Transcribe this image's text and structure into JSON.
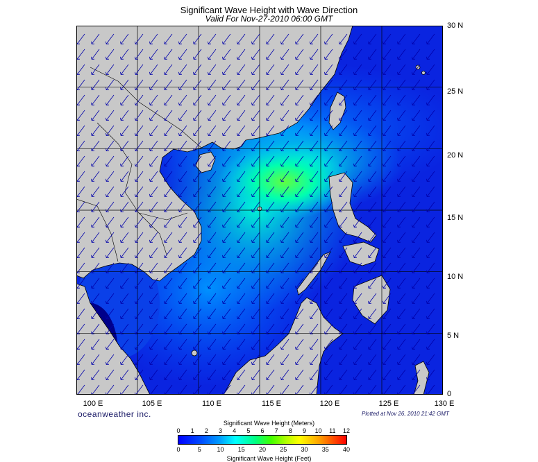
{
  "header": {
    "title": "Significant Wave Height with Wave Direction",
    "subtitle": "Valid For Nov-27-2010 06:00 GMT"
  },
  "map": {
    "region": "South China Sea",
    "lon_range": [
      100,
      130
    ],
    "lat_range": [
      0,
      30
    ],
    "lat_labels": [
      "30 N",
      "25 N",
      "20 N",
      "15 N",
      "10 N",
      "5 N",
      "0"
    ],
    "lon_labels": [
      "100 E",
      "105 E",
      "110 E",
      "115 E",
      "120 E",
      "125 E",
      "130 E"
    ],
    "land_color": "#c8c8c8",
    "ocean_color": "#0a24e0",
    "arrow_color": "#0000aa",
    "wave_direction": "from northeast"
  },
  "footer": {
    "brand": "oceanweather inc.",
    "plotted": "Plotted at Nov 26, 2010 21:42 GMT"
  },
  "scale": {
    "meters_title": "Significant Wave Height (Meters)",
    "feet_title": "Significant Wave Height (Feet)",
    "meters_ticks": [
      "0",
      "1",
      "2",
      "3",
      "4",
      "5",
      "6",
      "7",
      "8",
      "9",
      "10",
      "11",
      "12"
    ],
    "feet_ticks": [
      "0",
      "5",
      "10",
      "15",
      "20",
      "25",
      "30",
      "35",
      "40"
    ]
  }
}
